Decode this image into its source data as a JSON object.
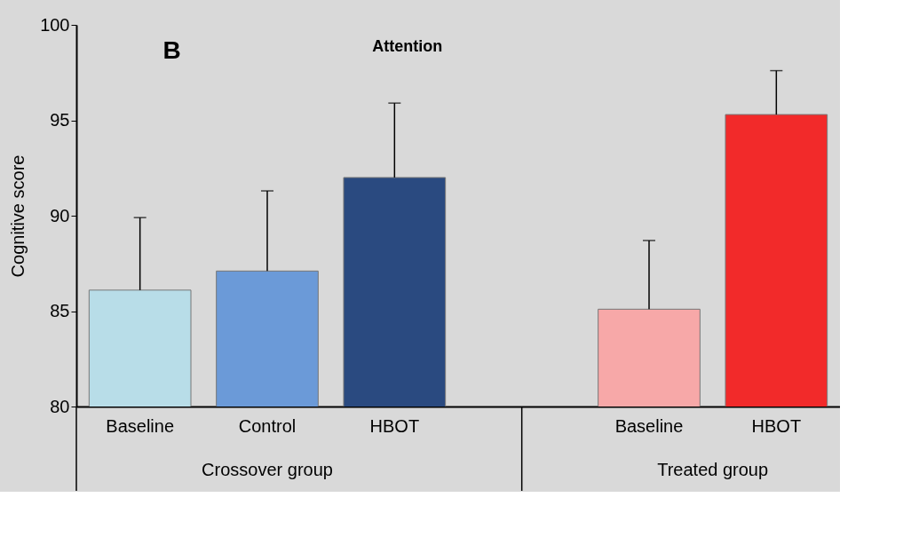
{
  "chart_data": {
    "type": "bar",
    "title": "Attention",
    "ylabel": "Cognitive score",
    "categories": [
      "Baseline",
      "Control",
      "HBOT",
      null,
      "Baseline",
      "HBOT"
    ],
    "values": [
      86.1,
      87.1,
      92.0,
      null,
      85.1,
      95.3
    ],
    "colors": [
      "#b8dde8",
      "#6b9ad8",
      "#2a4a80",
      null,
      "#f7a8a8",
      "#f22a2a"
    ],
    "errors": [
      [
        86.1,
        89.9
      ],
      [
        87.1,
        91.3
      ],
      [
        92.0,
        95.9
      ],
      null,
      [
        85.1,
        88.7
      ],
      [
        95.3,
        97.6
      ]
    ],
    "ylim": [
      80,
      100
    ],
    "yticks": [
      80,
      85,
      90,
      95,
      100
    ],
    "annotations": [
      "B",
      "Crossover group",
      "Treated group"
    ]
  }
}
